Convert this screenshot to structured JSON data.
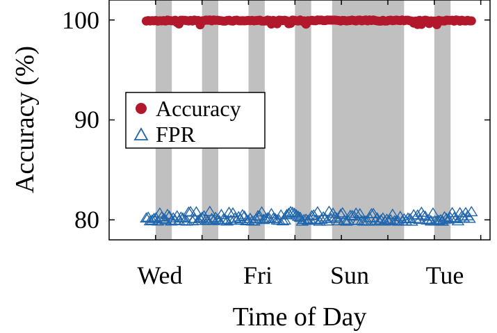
{
  "chart_data": {
    "type": "scatter",
    "xlabel": "Time of Day",
    "ylabel": "Accuracy (%)",
    "x_tick_labels": [
      "Wed",
      "Fri",
      "Sun",
      "Tue"
    ],
    "x_ticks_days": [
      1.5,
      3.5,
      5.5,
      7.5
    ],
    "xlim_days": [
      0,
      8.2
    ],
    "ylim": [
      78,
      102
    ],
    "y_ticks": [
      80,
      90,
      100
    ],
    "y_tick_labels": [
      "100",
      "90",
      "80"
    ],
    "grid": false,
    "legend_position": "left-middle",
    "shaded_regions_days": [
      [
        1.0,
        1.35
      ],
      [
        2.0,
        2.35
      ],
      [
        3.0,
        3.35
      ],
      [
        4.0,
        4.35
      ],
      [
        4.8,
        6.35
      ],
      [
        7.0,
        7.35
      ]
    ],
    "series": [
      {
        "name": "Accuracy",
        "marker": "filled-circle",
        "color": "#b2182b",
        "x_range_days": [
          0.8,
          7.8
        ],
        "approx_value": 99.9,
        "value_range": [
          99.5,
          100.0
        ]
      },
      {
        "name": "FPR",
        "marker": "open-triangle",
        "color": "#2166ac",
        "x_range_days": [
          0.8,
          7.8
        ],
        "approx_value": 80.1,
        "value_range": [
          79.8,
          80.8
        ]
      }
    ]
  },
  "colors": {
    "shade": "#c0c0c0",
    "accuracy": "#b2182b",
    "fpr": "#2166ac"
  }
}
